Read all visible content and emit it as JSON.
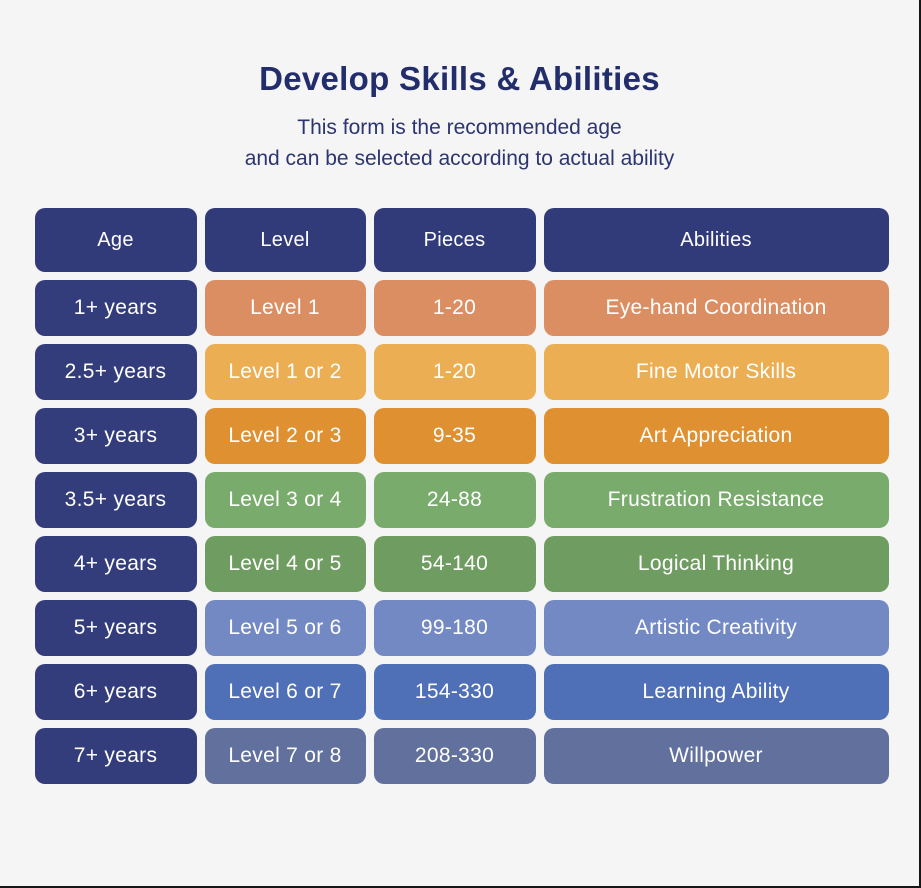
{
  "page": {
    "background": "#f5f5f6",
    "edge_border": "#161616"
  },
  "header": {
    "title": "Develop Skills & Abilities",
    "subtitle_line1": "This form is the recommended age",
    "subtitle_line2": "and can be  selected according to actual ability",
    "title_color": "#222d6b",
    "subtitle_color": "#2c356f"
  },
  "table": {
    "header_color": "#323b7a",
    "age_column_color": "#343d7c",
    "text_color": "#ffffff"
  },
  "chart_data": {
    "type": "table",
    "title": "Develop Skills & Abilities",
    "columns": [
      "Age",
      "Level",
      "Pieces",
      "Abilities"
    ],
    "rows": [
      {
        "age": "1+ years",
        "level": "Level 1",
        "pieces": "1-20",
        "ability": "Eye-hand Coordination",
        "color": "#dc8e63"
      },
      {
        "age": "2.5+ years",
        "level": "Level 1 or 2",
        "pieces": "1-20",
        "ability": "Fine Motor Skills",
        "color": "#ecae52"
      },
      {
        "age": "3+ years",
        "level": "Level 2 or 3",
        "pieces": "9-35",
        "ability": "Art Appreciation",
        "color": "#df9132"
      },
      {
        "age": "3.5+ years",
        "level": "Level 3 or 4",
        "pieces": "24-88",
        "ability": "Frustration Resistance",
        "color": "#79ab6c"
      },
      {
        "age": "4+ years",
        "level": "Level 4 or 5",
        "pieces": "54-140",
        "ability": "Logical Thinking",
        "color": "#6f9c60"
      },
      {
        "age": "5+ years",
        "level": "Level 5 or 6",
        "pieces": "99-180",
        "ability": "Artistic Creativity",
        "color": "#7389c3"
      },
      {
        "age": "6+ years",
        "level": "Level 6 or 7",
        "pieces": "154-330",
        "ability": "Learning Ability",
        "color": "#4f6fb7"
      },
      {
        "age": "7+ years",
        "level": "Level 7 or 8",
        "pieces": "208-330",
        "ability": "Willpower",
        "color": "#61709d"
      }
    ]
  }
}
